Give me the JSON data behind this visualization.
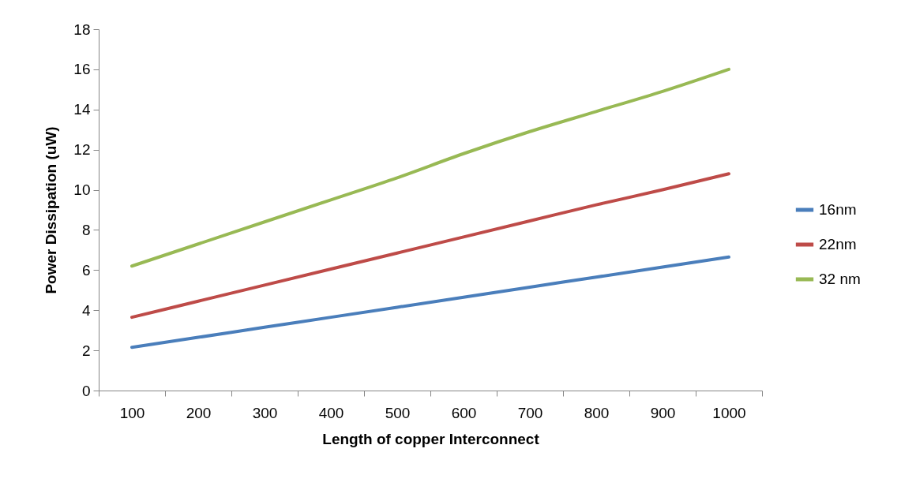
{
  "chart_data": {
    "type": "line",
    "xlabel": "Length of copper Interconnect",
    "ylabel": "Power Dissipation (uW)",
    "categories": [
      "100",
      "200",
      "300",
      "400",
      "500",
      "600",
      "700",
      "800",
      "900",
      "1000"
    ],
    "series": [
      {
        "name": "16nm",
        "color": "#4a7ebb",
        "values": [
          2.15,
          2.65,
          3.15,
          3.65,
          4.15,
          4.65,
          5.15,
          5.65,
          6.15,
          6.65
        ]
      },
      {
        "name": "22nm",
        "color": "#be4b48",
        "values": [
          3.65,
          4.45,
          5.25,
          6.05,
          6.85,
          7.65,
          8.45,
          9.25,
          10.0,
          10.8
        ]
      },
      {
        "name": "32 nm",
        "color": "#98b954",
        "values": [
          6.2,
          7.3,
          8.4,
          9.5,
          10.6,
          11.8,
          12.9,
          13.9,
          14.9,
          16.0
        ]
      }
    ],
    "ylim": [
      0,
      18
    ],
    "yticks": [
      0,
      2,
      4,
      6,
      8,
      10,
      12,
      14,
      16,
      18
    ],
    "grid": false,
    "legend": "right",
    "marker": "none",
    "line_style": "solid"
  }
}
